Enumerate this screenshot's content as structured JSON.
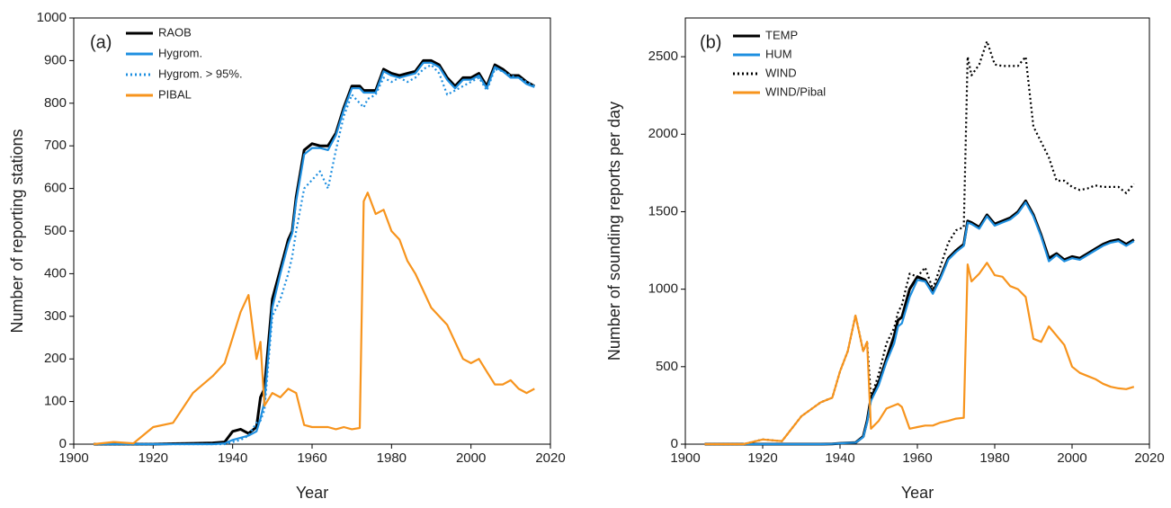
{
  "chart_data": [
    {
      "type": "line",
      "annotation": "(a)",
      "x_label": "Year",
      "y_label": "Number of reporting stations",
      "xlim": [
        1900,
        2020
      ],
      "xticks": [
        1900,
        1920,
        1940,
        1960,
        1980,
        2000,
        2020
      ],
      "ylim": [
        0,
        1000
      ],
      "yticks": [
        0,
        100,
        200,
        300,
        400,
        500,
        600,
        700,
        800,
        900,
        1000
      ],
      "x": [
        1905,
        1910,
        1915,
        1920,
        1925,
        1930,
        1935,
        1938,
        1940,
        1942,
        1944,
        1946,
        1947,
        1948,
        1950,
        1952,
        1954,
        1955,
        1956,
        1958,
        1960,
        1962,
        1964,
        1966,
        1968,
        1970,
        1972,
        1973,
        1974,
        1976,
        1978,
        1980,
        1982,
        1984,
        1986,
        1988,
        1990,
        1992,
        1994,
        1996,
        1998,
        2000,
        2002,
        2004,
        2006,
        2008,
        2010,
        2012,
        2014,
        2016
      ],
      "series": [
        {
          "name": "RAOB",
          "color": "#000000",
          "dash": "solid",
          "values": [
            0,
            0,
            0,
            0,
            1,
            2,
            3,
            5,
            30,
            35,
            25,
            40,
            110,
            130,
            340,
            410,
            480,
            500,
            580,
            690,
            705,
            700,
            700,
            730,
            790,
            840,
            840,
            830,
            830,
            830,
            880,
            870,
            865,
            870,
            875,
            900,
            900,
            890,
            860,
            840,
            860,
            860,
            870,
            840,
            890,
            880,
            865,
            865,
            850,
            840
          ]
        },
        {
          "name": "Hygrom.",
          "color": "#1e8fe0",
          "dash": "solid",
          "values": [
            0,
            0,
            0,
            0,
            0,
            0,
            0,
            2,
            10,
            15,
            20,
            30,
            60,
            100,
            320,
            400,
            470,
            495,
            570,
            680,
            695,
            695,
            690,
            725,
            785,
            835,
            835,
            825,
            825,
            825,
            875,
            865,
            860,
            865,
            870,
            895,
            895,
            885,
            855,
            835,
            855,
            855,
            865,
            835,
            885,
            875,
            860,
            860,
            845,
            838
          ]
        },
        {
          "name": "Hygrom. > 95%.",
          "color": "#1e8fe0",
          "dash": "dotted",
          "values": [
            0,
            0,
            0,
            0,
            0,
            0,
            0,
            0,
            5,
            10,
            20,
            50,
            55,
            80,
            300,
            340,
            400,
            440,
            500,
            600,
            620,
            640,
            600,
            690,
            770,
            820,
            800,
            790,
            810,
            820,
            860,
            850,
            860,
            850,
            860,
            880,
            890,
            870,
            820,
            830,
            840,
            850,
            860,
            830,
            880,
            875,
            865,
            860,
            850,
            840
          ]
        },
        {
          "name": "PIBAL",
          "color": "#f7941d",
          "dash": "solid",
          "values": [
            0,
            5,
            2,
            40,
            50,
            120,
            160,
            190,
            250,
            310,
            350,
            200,
            240,
            90,
            120,
            110,
            130,
            125,
            120,
            45,
            40,
            40,
            40,
            35,
            40,
            35,
            38,
            570,
            590,
            540,
            550,
            500,
            480,
            430,
            400,
            360,
            320,
            300,
            280,
            240,
            200,
            190,
            200,
            170,
            140,
            140,
            150,
            130,
            120,
            130
          ]
        }
      ]
    },
    {
      "type": "line",
      "annotation": "(b)",
      "x_label": "Year",
      "y_label": "Number of sounding reports per day",
      "xlim": [
        1900,
        2020
      ],
      "xticks": [
        1900,
        1920,
        1940,
        1960,
        1980,
        2000,
        2020
      ],
      "ylim": [
        0,
        2750
      ],
      "yticks": [
        0,
        500,
        1000,
        1500,
        2000,
        2500
      ],
      "x": [
        1905,
        1910,
        1915,
        1920,
        1925,
        1930,
        1935,
        1938,
        1940,
        1942,
        1944,
        1946,
        1947,
        1948,
        1950,
        1952,
        1954,
        1955,
        1956,
        1958,
        1960,
        1962,
        1964,
        1966,
        1968,
        1970,
        1972,
        1973,
        1974,
        1976,
        1978,
        1980,
        1982,
        1984,
        1986,
        1988,
        1990,
        1992,
        1994,
        1996,
        1998,
        2000,
        2002,
        2004,
        2006,
        2008,
        2010,
        2012,
        2014,
        2016
      ],
      "series": [
        {
          "name": "TEMP",
          "color": "#000000",
          "dash": "solid",
          "values": [
            0,
            0,
            0,
            0,
            0,
            0,
            0,
            2,
            5,
            8,
            10,
            50,
            150,
            300,
            400,
            550,
            700,
            800,
            820,
            1000,
            1080,
            1060,
            980,
            1080,
            1200,
            1250,
            1290,
            1440,
            1430,
            1400,
            1480,
            1420,
            1440,
            1460,
            1500,
            1570,
            1480,
            1350,
            1200,
            1230,
            1190,
            1210,
            1200,
            1230,
            1260,
            1290,
            1310,
            1320,
            1290,
            1320
          ]
        },
        {
          "name": "HUM",
          "color": "#1e8fe0",
          "dash": "solid",
          "values": [
            0,
            0,
            0,
            0,
            0,
            0,
            0,
            2,
            5,
            8,
            10,
            45,
            140,
            280,
            380,
            530,
            650,
            760,
            780,
            950,
            1060,
            1050,
            970,
            1070,
            1190,
            1240,
            1280,
            1430,
            1420,
            1390,
            1470,
            1410,
            1430,
            1450,
            1490,
            1560,
            1470,
            1340,
            1180,
            1220,
            1180,
            1200,
            1190,
            1220,
            1250,
            1280,
            1300,
            1310,
            1280,
            1310
          ]
        },
        {
          "name": "WIND",
          "color": "#000000",
          "dash": "dotted",
          "values": [
            0,
            0,
            0,
            30,
            20,
            180,
            270,
            300,
            470,
            600,
            830,
            600,
            660,
            300,
            450,
            650,
            750,
            850,
            900,
            1100,
            1080,
            1140,
            1000,
            1150,
            1300,
            1380,
            1400,
            2500,
            2380,
            2450,
            2600,
            2450,
            2440,
            2440,
            2440,
            2500,
            2050,
            1950,
            1850,
            1700,
            1700,
            1660,
            1640,
            1650,
            1670,
            1660,
            1660,
            1660,
            1620,
            1680
          ]
        },
        {
          "name": "WIND/Pibal",
          "color": "#f7941d",
          "dash": "solid",
          "values": [
            0,
            0,
            0,
            30,
            20,
            180,
            270,
            300,
            470,
            600,
            830,
            600,
            660,
            100,
            150,
            230,
            250,
            260,
            240,
            100,
            110,
            120,
            120,
            140,
            150,
            165,
            170,
            1160,
            1050,
            1100,
            1170,
            1090,
            1080,
            1020,
            1000,
            950,
            680,
            660,
            760,
            700,
            640,
            500,
            460,
            440,
            420,
            390,
            370,
            360,
            355,
            370
          ]
        }
      ]
    }
  ]
}
